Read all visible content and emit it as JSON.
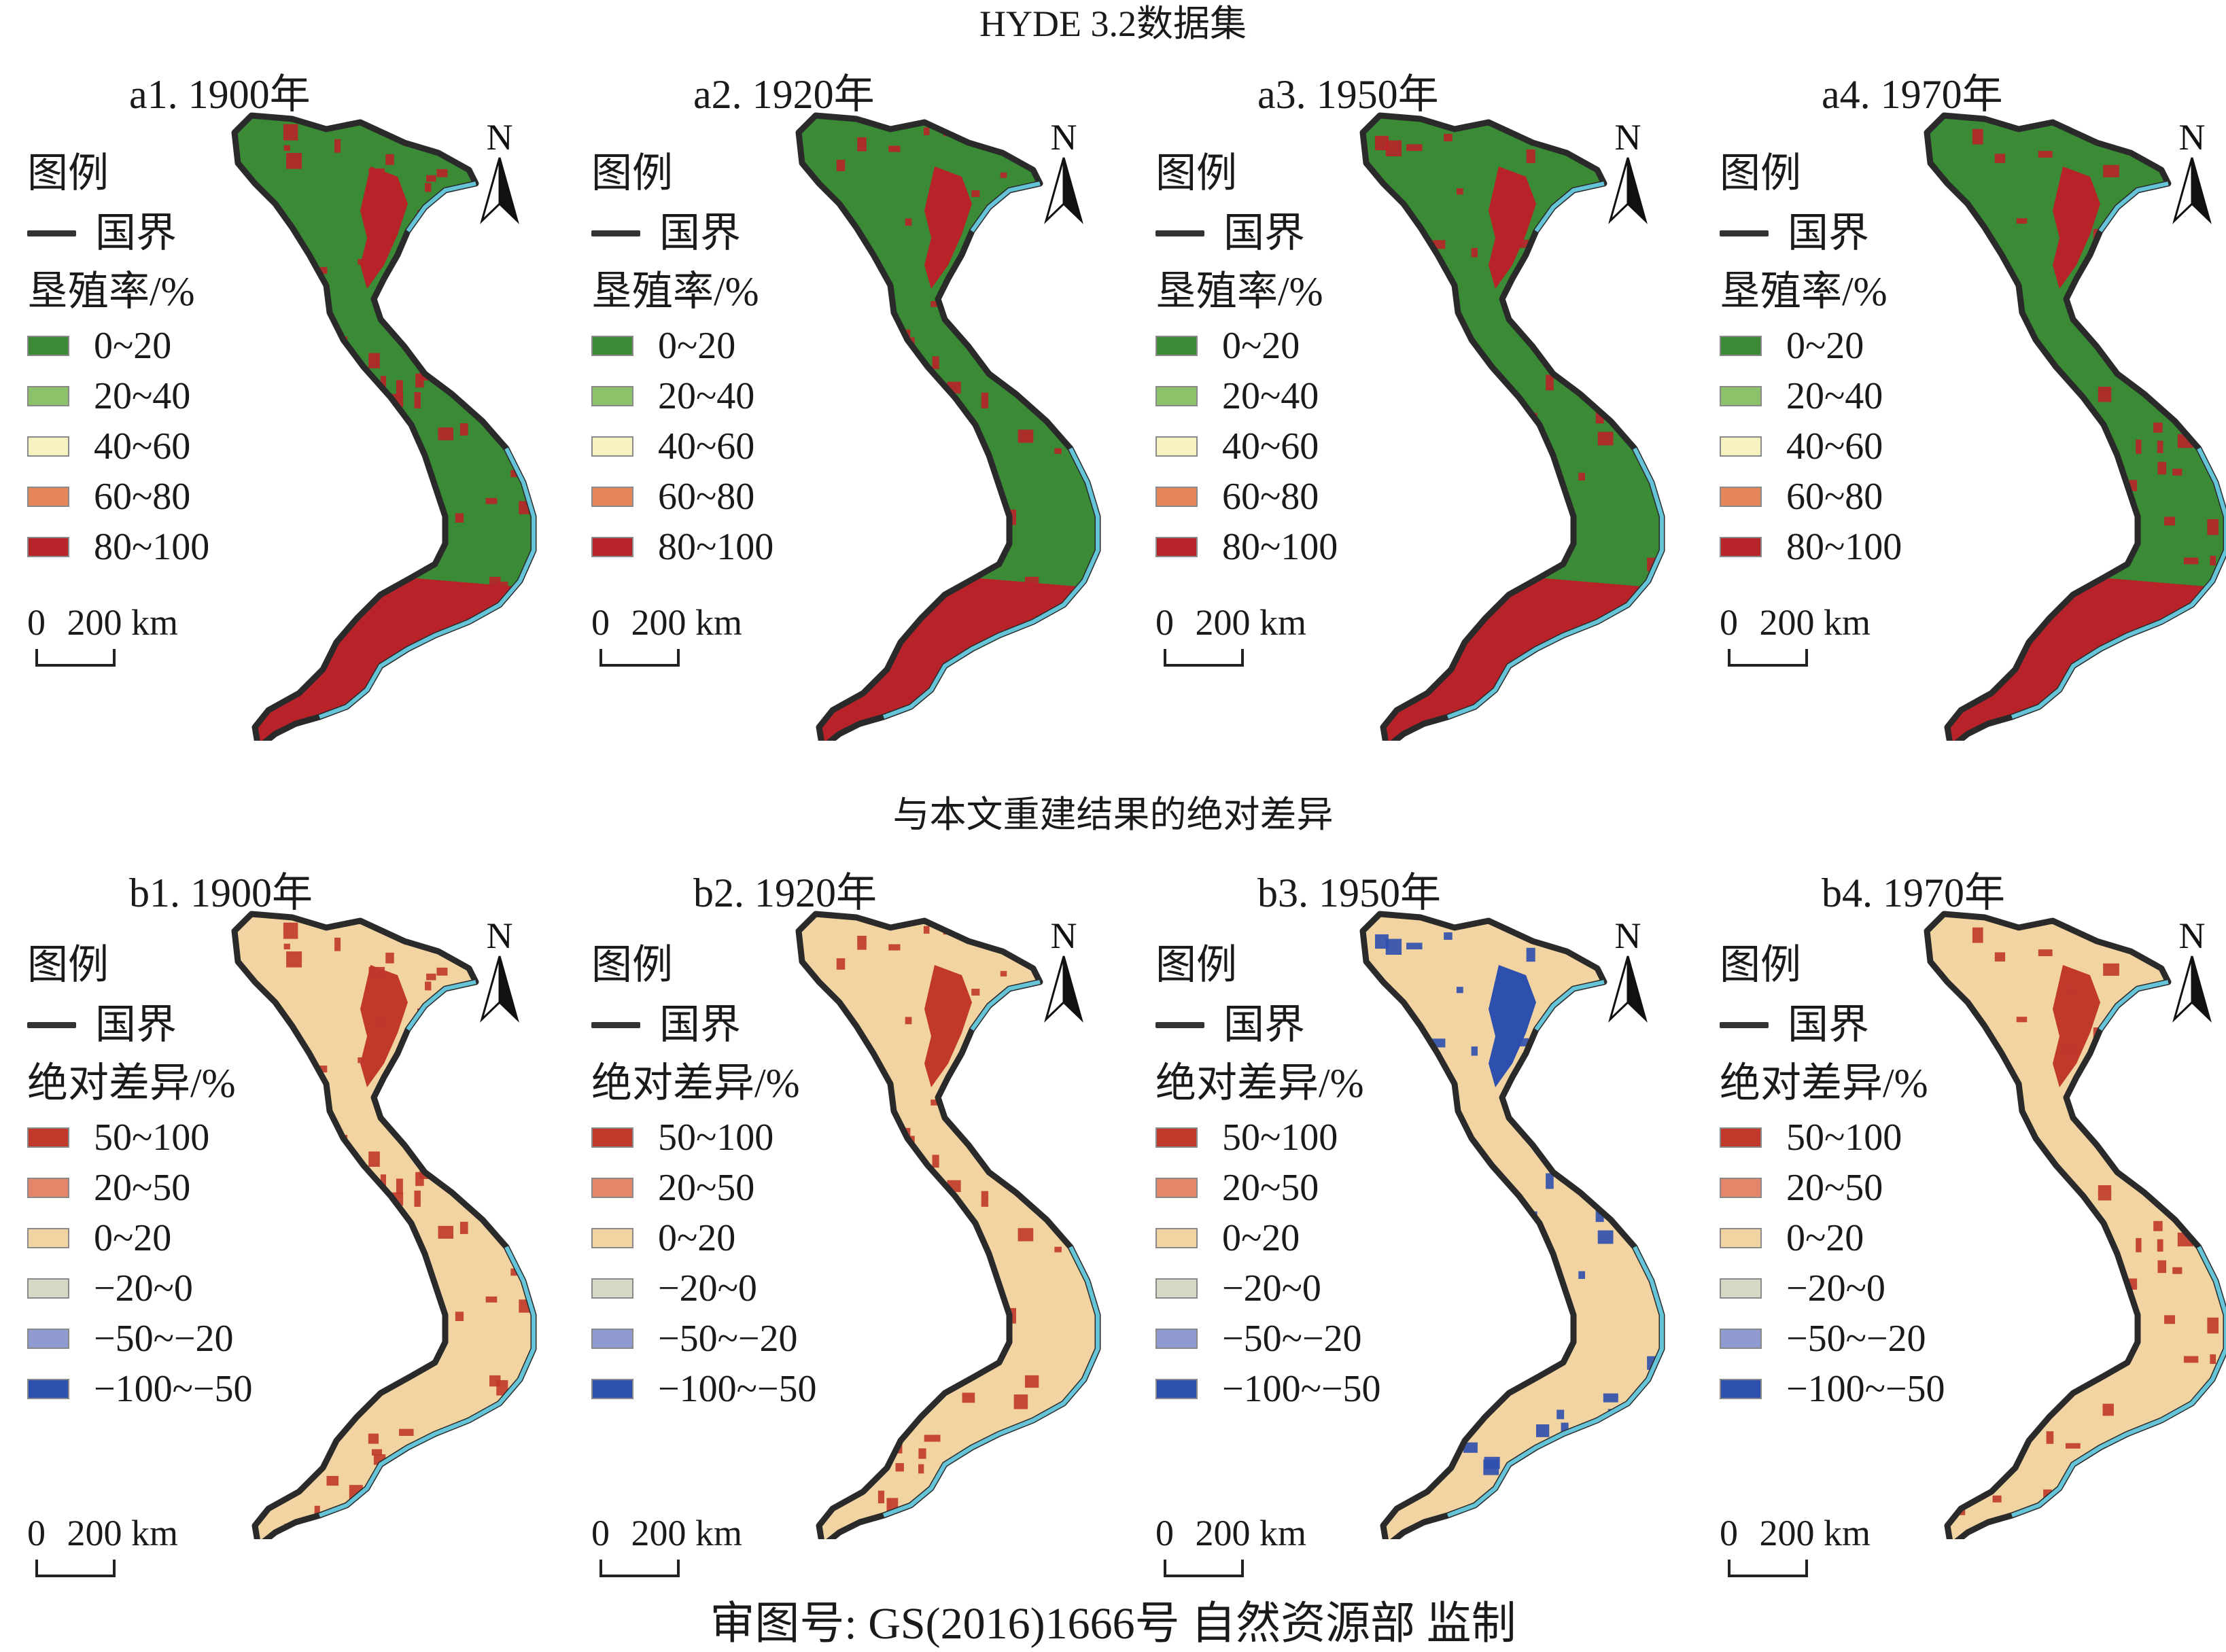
{
  "titles": {
    "top": "HYDE 3.2数据集",
    "middle": "与本文重建结果的绝对差异",
    "footer": "审图号: GS(2016)1666号 自然资源部 监制"
  },
  "north_label": "N",
  "scale": {
    "zero": "0",
    "label": "200 km"
  },
  "legend_a": {
    "header": "图例",
    "border_label": "国界",
    "subtitle": "垦殖率/%",
    "items": [
      {
        "label": "0~20",
        "color": "#3a8a36"
      },
      {
        "label": "20~40",
        "color": "#8cc26a"
      },
      {
        "label": "40~60",
        "color": "#f6f2bf"
      },
      {
        "label": "60~80",
        "color": "#e5865d"
      },
      {
        "label": "80~100",
        "color": "#b8232a"
      }
    ]
  },
  "legend_b": {
    "header": "图例",
    "border_label": "国界",
    "subtitle": "绝对差异/%",
    "items": [
      {
        "label": "50~100",
        "color": "#c0392b"
      },
      {
        "label": "20~50",
        "color": "#e5866a"
      },
      {
        "label": "0~20",
        "color": "#f2d4a2"
      },
      {
        "label": "−20~0",
        "color": "#d8d8c6"
      },
      {
        "label": "−50~−20",
        "color": "#8e9ad0"
      },
      {
        "label": "−100~−50",
        "color": "#2d4fae"
      }
    ]
  },
  "panels_a": [
    {
      "label": "a1. 1900年",
      "dominant": "#3a8a36",
      "patch": "#b8232a",
      "south": "#b8232a"
    },
    {
      "label": "a2. 1920年",
      "dominant": "#3a8a36",
      "patch": "#b8232a",
      "south": "#b8232a"
    },
    {
      "label": "a3. 1950年",
      "dominant": "#3a8a36",
      "patch": "#b8232a",
      "south": "#b8232a"
    },
    {
      "label": "a4. 1970年",
      "dominant": "#3a8a36",
      "patch": "#b8232a",
      "south": "#b8232a"
    }
  ],
  "panels_b": [
    {
      "label": "b1. 1900年",
      "dominant": "#f2d4a2",
      "patch": "#c0392b",
      "south": "#f2d4a2"
    },
    {
      "label": "b2. 1920年",
      "dominant": "#f2d4a2",
      "patch": "#c0392b",
      "south": "#f2d4a2"
    },
    {
      "label": "b3. 1950年",
      "dominant": "#f2d4a2",
      "patch": "#2d4fae",
      "south": "#f2d4a2"
    },
    {
      "label": "b4. 1970年",
      "dominant": "#f2d4a2",
      "patch": "#c0392b",
      "south": "#f2d4a2"
    }
  ]
}
